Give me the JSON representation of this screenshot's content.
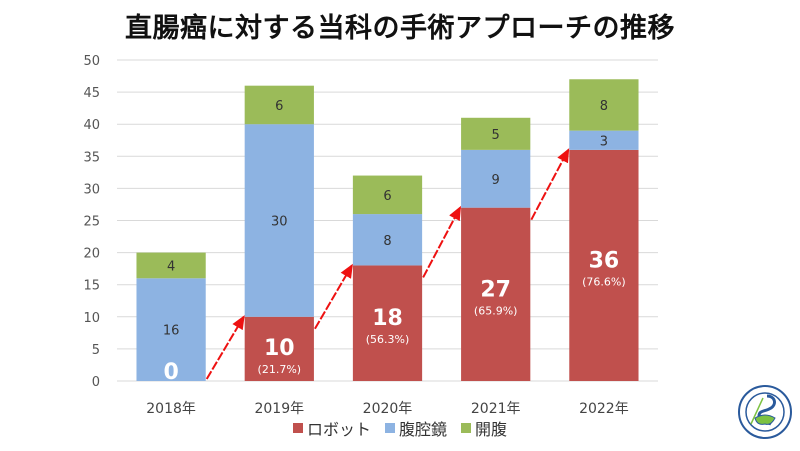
{
  "chart_data": {
    "type": "bar",
    "stacked": true,
    "title": "直腸癌に対する当科の手術アプローチの推移",
    "xlabel": "",
    "ylabel": "",
    "ylim": [
      0,
      50
    ],
    "yticks": [
      0,
      5,
      10,
      15,
      20,
      25,
      30,
      35,
      40,
      45,
      50
    ],
    "grid": true,
    "legend_position": "bottom",
    "categories": [
      "2018年",
      "2019年",
      "2020年",
      "2021年",
      "2022年"
    ],
    "series": [
      {
        "name": "ロボット",
        "color": "#c0504d",
        "values": [
          0,
          10,
          18,
          27,
          36
        ],
        "percent_labels": [
          "",
          "(21.7%)",
          "(56.3%)",
          "(65.9%)",
          "(76.6%)"
        ]
      },
      {
        "name": "腹腔鏡",
        "color": "#8db3e2",
        "values": [
          16,
          30,
          8,
          9,
          3
        ]
      },
      {
        "name": "開腹",
        "color": "#9bbb59",
        "values": [
          4,
          6,
          6,
          5,
          8
        ]
      }
    ],
    "annotations": "Red arrows connect successive robot-surgery bar tops showing increasing trend"
  },
  "colors": {
    "arrow": "#ee1111",
    "grid": "#d9d9d9"
  },
  "logo": {
    "name": "society-emblem"
  }
}
